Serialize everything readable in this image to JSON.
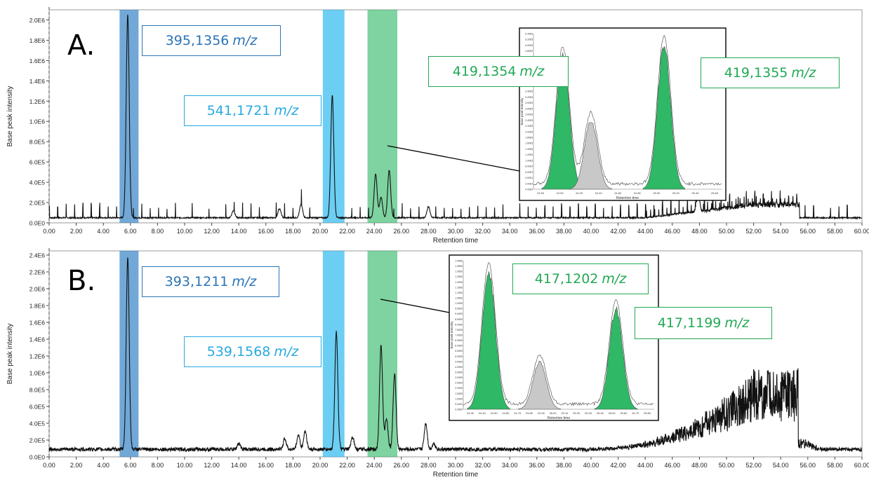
{
  "colors": {
    "dark_blue": "#3a86c8",
    "light_blue": "#33bbee",
    "green": "#2fb865",
    "grey": "#c8c8c8",
    "trace": "#111111"
  },
  "chart_data": [
    {
      "type": "line",
      "panel": "A.",
      "xlabel": "Retention time",
      "ylabel": "Base peak intensity",
      "xlim": [
        0,
        60
      ],
      "ylim": [
        0,
        2100000
      ],
      "x_ticks": [
        "0.00",
        "2.00",
        "4.00",
        "6.00",
        "8.00",
        "10.00",
        "12.00",
        "14.00",
        "16.00",
        "18.00",
        "20.00",
        "22.00",
        "24.00",
        "26.00",
        "28.00",
        "30.00",
        "32.00",
        "34.00",
        "36.00",
        "38.00",
        "40.00",
        "42.00",
        "44.00",
        "46.00",
        "48.00",
        "50.00",
        "52.00",
        "54.00",
        "56.00",
        "58.00",
        "60.00"
      ],
      "y_ticks": [
        "0.0E0",
        "2.0E5",
        "4.0E5",
        "6.0E5",
        "8.0E5",
        "1.0E6",
        "1.2E6",
        "1.4E6",
        "1.6E6",
        "1.8E6",
        "2.0E6"
      ],
      "highlights": [
        {
          "from": 5.2,
          "to": 6.6,
          "color": "dark_blue",
          "label": "395,1356",
          "unit": "m/z"
        },
        {
          "from": 20.2,
          "to": 21.8,
          "color": "light_blue",
          "label": "541,1721",
          "unit": "m/z"
        },
        {
          "from": 23.5,
          "to": 25.7,
          "color": "green",
          "label_left": "419,1354",
          "label_right": "419,1355",
          "unit": "m/z"
        }
      ],
      "peaks": [
        {
          "x": 5.8,
          "y": 2050000
        },
        {
          "x": 20.9,
          "y": 1260000
        },
        {
          "x": 24.1,
          "y": 480000
        },
        {
          "x": 24.5,
          "y": 250000
        },
        {
          "x": 25.1,
          "y": 520000
        },
        {
          "x": 13.6,
          "y": 120000
        },
        {
          "x": 17.0,
          "y": 140000
        },
        {
          "x": 18.6,
          "y": 180000
        },
        {
          "x": 28.0,
          "y": 160000
        },
        {
          "x": 47.9,
          "y": 220000
        }
      ],
      "baseline": 50000,
      "inset": {
        "xlabel": "Retention time",
        "ylabel": "Base peak intensity",
        "x_ticks": [
          "23.90",
          "24.00",
          "24.20",
          "24.40",
          "24.60",
          "24.80",
          "25.00",
          "25.20",
          "25.40",
          "25.60"
        ],
        "y_ticks": [
          "0.00E0",
          "2.00E4",
          "4.00E4",
          "6.00E4",
          "8.00E4",
          "1.00E5",
          "1.20E5",
          "1.40E5",
          "1.60E5",
          "1.80E5",
          "2.00E5",
          "2.20E5",
          "2.40E5",
          "2.60E5",
          "2.80E5",
          "3.00E5",
          "3.20E5",
          "3.40E5",
          "3.60E5",
          "3.80E5",
          "4.00E5",
          "4.20E5",
          "4.40E5",
          "4.60E5",
          "4.80E5",
          "5.00E5",
          "5.20E5",
          "5.40E5"
        ],
        "xlim": [
          23.85,
          25.65
        ],
        "ylim": [
          0,
          545000
        ],
        "peaks": [
          {
            "x": 24.13,
            "y": 480000,
            "fill": "green"
          },
          {
            "x": 24.4,
            "y": 250000,
            "fill": "grey"
          },
          {
            "x": 25.1,
            "y": 520000,
            "fill": "green"
          }
        ]
      }
    },
    {
      "type": "line",
      "panel": "B.",
      "xlabel": "Retention time",
      "ylabel": "Base peak intensity",
      "xlim": [
        0,
        60
      ],
      "ylim": [
        0,
        2450000
      ],
      "x_ticks": [
        "0.00",
        "2.00",
        "4.00",
        "6.00",
        "8.00",
        "10.00",
        "12.00",
        "14.00",
        "16.00",
        "18.00",
        "20.00",
        "22.00",
        "24.00",
        "26.00",
        "28.00",
        "30.00",
        "32.00",
        "34.00",
        "36.00",
        "38.00",
        "40.00",
        "42.00",
        "44.00",
        "46.00",
        "48.00",
        "50.00",
        "52.00",
        "54.00",
        "56.00",
        "58.00",
        "60.00"
      ],
      "y_ticks": [
        "0.0E0",
        "2.0E5",
        "4.0E5",
        "6.0E5",
        "8.0E5",
        "1.0E6",
        "1.2E6",
        "1.4E6",
        "1.6E6",
        "1.8E6",
        "2.0E6",
        "2.2E6",
        "2.4E6"
      ],
      "highlights": [
        {
          "from": 5.2,
          "to": 6.6,
          "color": "dark_blue",
          "label": "393,1211",
          "unit": "m/z"
        },
        {
          "from": 20.2,
          "to": 21.8,
          "color": "light_blue",
          "label": "539,1568",
          "unit": "m/z"
        },
        {
          "from": 23.5,
          "to": 25.7,
          "color": "green",
          "label_left": "417,1202",
          "label_right": "417,1199",
          "unit": "m/z"
        }
      ],
      "peaks": [
        {
          "x": 5.8,
          "y": 2380000
        },
        {
          "x": 21.2,
          "y": 1490000
        },
        {
          "x": 24.5,
          "y": 1330000
        },
        {
          "x": 24.9,
          "y": 460000
        },
        {
          "x": 25.5,
          "y": 980000
        },
        {
          "x": 14.0,
          "y": 160000
        },
        {
          "x": 17.4,
          "y": 220000
        },
        {
          "x": 18.4,
          "y": 260000
        },
        {
          "x": 18.9,
          "y": 310000
        },
        {
          "x": 22.4,
          "y": 240000
        },
        {
          "x": 27.8,
          "y": 400000
        },
        {
          "x": 28.4,
          "y": 160000
        }
      ],
      "baseline": 90000,
      "inset": {
        "xlabel": "Retention time",
        "ylabel": "Base peak intensity",
        "x_ticks": [
          "24.30",
          "24.40",
          "24.50",
          "24.60",
          "24.70",
          "24.80",
          "24.90",
          "25.00",
          "25.10",
          "25.20",
          "25.30",
          "25.40",
          "25.50",
          "25.60",
          "25.70",
          "25.80"
        ],
        "y_ticks": [
          "0.00E0",
          "5.00E4",
          "1.00E5",
          "1.50E5",
          "2.00E5",
          "2.50E5",
          "3.00E5",
          "3.50E5",
          "4.00E5",
          "4.50E5",
          "5.00E5",
          "5.50E5",
          "6.00E5",
          "6.50E5",
          "7.00E5",
          "7.50E5",
          "8.00E5",
          "8.50E5",
          "9.00E5",
          "9.50E5",
          "1.00E6",
          "1.05E6",
          "1.10E6",
          "1.15E6",
          "1.20E6",
          "1.25E6",
          "1.30E6",
          "1.35E6",
          "1.40E6"
        ],
        "xlim": [
          24.3,
          25.8
        ],
        "ylim": [
          0,
          1400000
        ],
        "peaks": [
          {
            "x": 24.5,
            "y": 1330000,
            "fill": "green"
          },
          {
            "x": 24.9,
            "y": 460000,
            "fill": "grey"
          },
          {
            "x": 25.5,
            "y": 980000,
            "fill": "green"
          }
        ]
      }
    }
  ]
}
